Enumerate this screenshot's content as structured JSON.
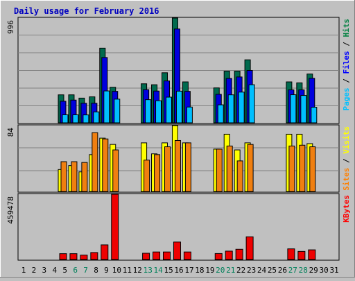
{
  "chart_data": {
    "type": "bar",
    "title": "Daily usage for February 2016",
    "days": [
      "1",
      "2",
      "3",
      "4",
      "5",
      "6",
      "7",
      "8",
      "9",
      "10",
      "11",
      "12",
      "13",
      "14",
      "15",
      "16",
      "17",
      "18",
      "19",
      "20",
      "21",
      "22",
      "23",
      "24",
      "25",
      "26",
      "27",
      "28",
      "29",
      "30",
      "31"
    ],
    "weekend_days": [
      "6",
      "7",
      "13",
      "14",
      "20",
      "21",
      "27",
      "28"
    ],
    "panels": [
      {
        "id": "pfh",
        "max_label": "996",
        "ylim": [
          0,
          996
        ],
        "right_label_parts": [
          {
            "text": "Pages",
            "color": "#00c0ff"
          },
          {
            "text": " / ",
            "color": "#000000"
          },
          {
            "text": "Files",
            "color": "#0000ff"
          },
          {
            "text": " / ",
            "color": "#000000"
          },
          {
            "text": "Hits",
            "color": "#008040"
          }
        ],
        "series": [
          {
            "name": "Hits",
            "color": "#006a4e",
            "values": [
              0,
              0,
              0,
              0,
              266,
              266,
              235,
              247,
              710,
              338,
              0,
              0,
              371,
              362,
              476,
              996,
              389,
              0,
              0,
              332,
              491,
              491,
              599,
              0,
              0,
              0,
              389,
              380,
              464,
              0,
              0
            ]
          },
          {
            "name": "Files",
            "color": "#0000dd",
            "values": [
              0,
              0,
              0,
              0,
              205,
              216,
              186,
              186,
              621,
              299,
              0,
              0,
              315,
              302,
              398,
              892,
              299,
              0,
              0,
              271,
              422,
              436,
              498,
              0,
              0,
              0,
              313,
              313,
              423,
              0,
              0
            ]
          },
          {
            "name": "Pages",
            "color": "#00bfff",
            "values": [
              0,
              0,
              0,
              0,
              76,
              76,
              75,
              104,
              303,
              225,
              0,
              0,
              220,
              210,
              244,
              301,
              150,
              0,
              0,
              171,
              266,
              292,
              362,
              0,
              0,
              0,
              267,
              260,
              148,
              0,
              0
            ]
          }
        ]
      },
      {
        "id": "sv",
        "max_label": "84",
        "ylim": [
          0,
          84
        ],
        "right_label_parts": [
          {
            "text": "Sites",
            "color": "#ff8000"
          },
          {
            "text": " / ",
            "color": "#000000"
          },
          {
            "text": "Visits",
            "color": "#ffff00"
          }
        ],
        "series": [
          {
            "name": "Visits",
            "color": "#ffff00",
            "values": [
              0,
              0,
              0,
              0,
              28,
              33,
              25,
              47,
              68,
              60,
              0,
              0,
              62,
              48,
              62,
              84,
              62,
              0,
              0,
              54,
              73,
              53,
              62,
              0,
              0,
              0,
              73,
              73,
              61,
              0,
              0
            ]
          },
          {
            "name": "Sites",
            "color": "#f07f10",
            "values": [
              0,
              0,
              0,
              0,
              38,
              38,
              37,
              75,
              67,
              53,
              0,
              0,
              40,
              47,
              57,
              65,
              62,
              0,
              0,
              54,
              58,
              39,
              60,
              0,
              0,
              0,
              58,
              59,
              57,
              0,
              0
            ]
          }
        ]
      },
      {
        "id": "kb",
        "max_label": "459478",
        "ylim": [
          0,
          459478
        ],
        "right_label_parts": [
          {
            "text": "KBytes",
            "color": "#ff0000"
          }
        ],
        "series": [
          {
            "name": "KBytes",
            "color": "#ee0000",
            "values": [
              0,
              0,
              0,
              0,
              41000,
              41000,
              31000,
              49000,
              103000,
              459478,
              0,
              0,
              44000,
              53000,
              53000,
              123000,
              53000,
              0,
              0,
              42000,
              59000,
              72000,
              160000,
              0,
              0,
              0,
              75000,
              57000,
              68000,
              0,
              0
            ]
          }
        ]
      }
    ]
  }
}
